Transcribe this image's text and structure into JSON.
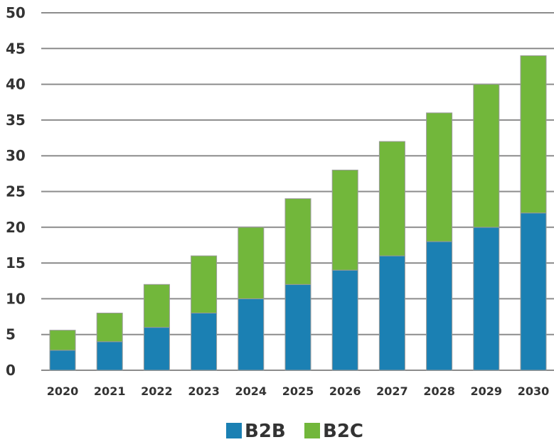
{
  "chart_data": {
    "type": "bar",
    "stacked": true,
    "categories": [
      "2020",
      "2021",
      "2022",
      "2023",
      "2024",
      "2025",
      "2026",
      "2027",
      "2028",
      "2029",
      "2030"
    ],
    "series": [
      {
        "name": "B2B",
        "color": "#1b80b3",
        "values": [
          2.8,
          4,
          6,
          8,
          10,
          12,
          14,
          16,
          18,
          20,
          22
        ]
      },
      {
        "name": "B2C",
        "color": "#72b73b",
        "values": [
          2.8,
          4,
          6,
          8,
          10,
          12,
          14,
          16,
          18,
          20,
          22
        ]
      }
    ],
    "y_ticks": [
      "0",
      "5",
      "10",
      "15",
      "20",
      "25",
      "30",
      "35",
      "40",
      "45",
      "50"
    ],
    "ylim": [
      0,
      50
    ],
    "grid": true,
    "legend_position": "bottom",
    "title": "",
    "xlabel": "",
    "ylabel": ""
  }
}
